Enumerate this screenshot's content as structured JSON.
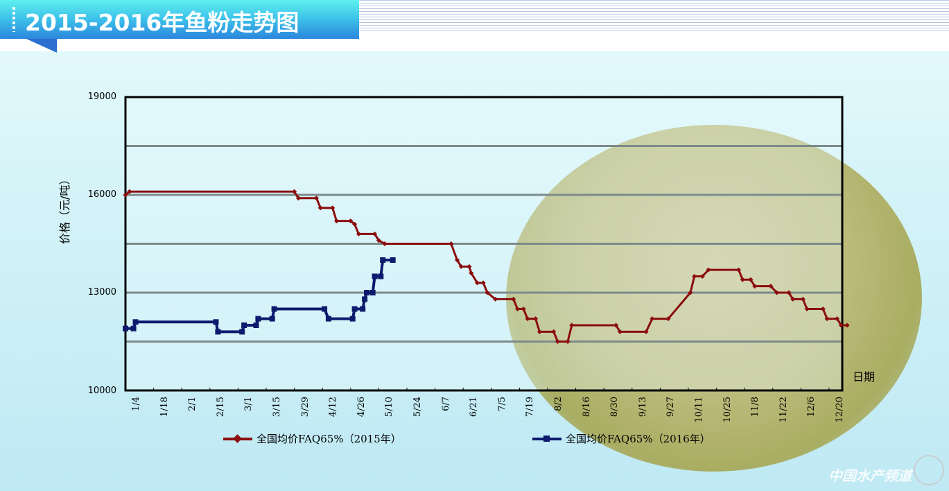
{
  "header": {
    "title": "2015-2016年鱼粉走势图"
  },
  "watermark": "中国水产频道",
  "chart_data": {
    "type": "line",
    "title": "2015-2016年鱼粉走势图",
    "ylabel": "价格（元/吨）",
    "xlabel": "日期",
    "ylim": [
      10000,
      19000
    ],
    "yticks": [
      "19000",
      "16000",
      "13000",
      "10000"
    ],
    "gridlines": [
      17500,
      16000,
      14500,
      13000,
      11500
    ],
    "grid": true,
    "legend_position": "bottom",
    "categories": [
      "1/4",
      "1/18",
      "2/1",
      "2/15",
      "3/1",
      "3/15",
      "3/29",
      "4/12",
      "4/26",
      "5/10",
      "5/24",
      "6/7",
      "6/21",
      "7/5",
      "7/19",
      "8/2",
      "8/16",
      "8/30",
      "9/13",
      "9/27",
      "10/11",
      "10/25",
      "11/8",
      "11/22",
      "12/6",
      "12/20"
    ],
    "series": [
      {
        "name": "全国均价FAQ65%（2015年）",
        "color": "#8b0d0d",
        "points": [
          [
            "1/4",
            16000
          ],
          [
            "1/6",
            16100
          ],
          [
            "3/29",
            16100
          ],
          [
            "3/31",
            15900
          ],
          [
            "4/9",
            15900
          ],
          [
            "4/11",
            15600
          ],
          [
            "4/17",
            15600
          ],
          [
            "4/19",
            15200
          ],
          [
            "4/26",
            15200
          ],
          [
            "4/28",
            15100
          ],
          [
            "4/30",
            14800
          ],
          [
            "5/8",
            14800
          ],
          [
            "5/10",
            14600
          ],
          [
            "5/13",
            14500
          ],
          [
            "6/15",
            14500
          ],
          [
            "6/18",
            14000
          ],
          [
            "6/20",
            13800
          ],
          [
            "6/24",
            13800
          ],
          [
            "6/25",
            13600
          ],
          [
            "6/28",
            13300
          ],
          [
            "7/1",
            13300
          ],
          [
            "7/3",
            13000
          ],
          [
            "7/7",
            12800
          ],
          [
            "7/16",
            12800
          ],
          [
            "7/18",
            12500
          ],
          [
            "7/21",
            12500
          ],
          [
            "7/23",
            12200
          ],
          [
            "7/27",
            12200
          ],
          [
            "7/29",
            11800
          ],
          [
            "8/5",
            11800
          ],
          [
            "8/7",
            11500
          ],
          [
            "8/12",
            11500
          ],
          [
            "8/14",
            12000
          ],
          [
            "9/5",
            12000
          ],
          [
            "9/7",
            11800
          ],
          [
            "9/20",
            11800
          ],
          [
            "9/23",
            12200
          ],
          [
            "10/1",
            12200
          ],
          [
            "10/12",
            13000
          ],
          [
            "10/14",
            13500
          ],
          [
            "10/18",
            13500
          ],
          [
            "10/21",
            13700
          ],
          [
            "11/5",
            13700
          ],
          [
            "11/7",
            13400
          ],
          [
            "11/11",
            13400
          ],
          [
            "11/13",
            13200
          ],
          [
            "11/21",
            13200
          ],
          [
            "11/24",
            13000
          ],
          [
            "11/30",
            13000
          ],
          [
            "12/2",
            12800
          ],
          [
            "12/7",
            12800
          ],
          [
            "12/9",
            12500
          ],
          [
            "12/17",
            12500
          ],
          [
            "12/19",
            12200
          ],
          [
            "12/24",
            12200
          ],
          [
            "12/26",
            12000
          ],
          [
            "12/29",
            12000
          ]
        ]
      },
      {
        "name": "全国均价FAQ65%（2016年）",
        "color": "#0d1b6e",
        "points": [
          [
            "1/4",
            11900
          ],
          [
            "1/8",
            11900
          ],
          [
            "1/9",
            12100
          ],
          [
            "2/18",
            12100
          ],
          [
            "2/19",
            11800
          ],
          [
            "3/3",
            11800
          ],
          [
            "3/4",
            12000
          ],
          [
            "3/10",
            12000
          ],
          [
            "3/11",
            12200
          ],
          [
            "3/18",
            12200
          ],
          [
            "3/19",
            12500
          ],
          [
            "4/13",
            12500
          ],
          [
            "4/15",
            12200
          ],
          [
            "4/27",
            12200
          ],
          [
            "4/28",
            12500
          ],
          [
            "5/2",
            12500
          ],
          [
            "5/3",
            12800
          ],
          [
            "5/4",
            13000
          ],
          [
            "5/7",
            13000
          ],
          [
            "5/8",
            13500
          ],
          [
            "5/11",
            13500
          ],
          [
            "5/12",
            14000
          ],
          [
            "5/17",
            14000
          ]
        ]
      }
    ]
  }
}
